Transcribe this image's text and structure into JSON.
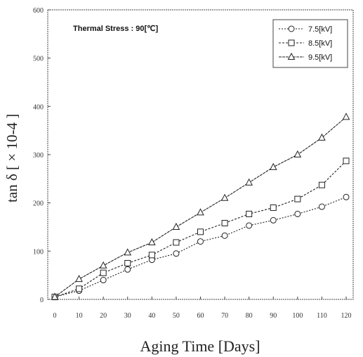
{
  "chart_data": {
    "type": "line",
    "title": "",
    "annotation": "Thermal Stress : 90[℃]",
    "xlabel": "Aging Time [Days]",
    "ylabel": "tan δ [ × 10-4 ]",
    "x": [
      0,
      10,
      20,
      30,
      40,
      50,
      60,
      70,
      80,
      90,
      100,
      110,
      120
    ],
    "xlim": [
      0,
      120
    ],
    "ylim": [
      0,
      600
    ],
    "x_ticks": [
      "0",
      "10",
      "20",
      "30",
      "40",
      "50",
      "60",
      "70",
      "80",
      "90",
      "100",
      "110",
      "120"
    ],
    "y_ticks": [
      "0",
      "100",
      "200",
      "300",
      "400",
      "500",
      "600"
    ],
    "grid": false,
    "legend_position": "top-right",
    "series": [
      {
        "name": "7.5[kV]",
        "marker": "circle",
        "values": [
          5,
          18,
          40,
          62,
          82,
          95,
          120,
          132,
          153,
          164,
          177,
          192,
          212
        ]
      },
      {
        "name": "8.5[kV]",
        "marker": "square",
        "values": [
          5,
          22,
          55,
          75,
          92,
          118,
          140,
          158,
          177,
          190,
          208,
          237,
          287
        ]
      },
      {
        "name": "9.5[kV]",
        "marker": "triangle",
        "values": [
          5,
          42,
          70,
          97,
          118,
          150,
          180,
          210,
          242,
          274,
          300,
          335,
          378
        ]
      }
    ]
  }
}
